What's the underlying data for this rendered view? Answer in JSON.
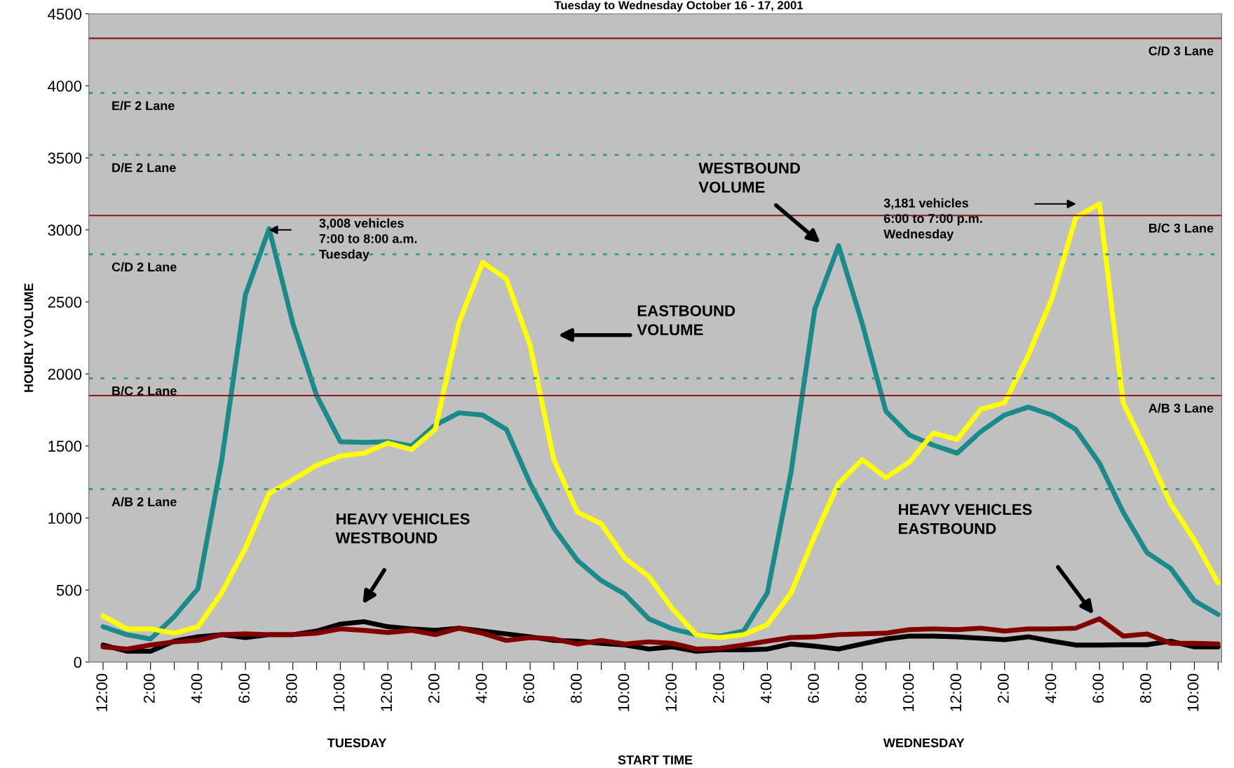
{
  "chart_data": {
    "type": "line",
    "title": "Tuesday to Wednesday October 16 - 17, 2001",
    "xlabel": "START TIME",
    "ylabel": "HOURLY VOLUME",
    "categories": [
      "12:00",
      null,
      "2:00",
      null,
      "4:00",
      null,
      "6:00",
      null,
      "8:00",
      null,
      "10:00",
      null,
      "12:00",
      null,
      "2:00",
      null,
      "4:00",
      null,
      "6:00",
      null,
      "8:00",
      null,
      "10:00",
      null,
      "12:00",
      null,
      "2:00",
      null,
      "4:00",
      null,
      "6:00",
      null,
      "8:00",
      null,
      "10:00",
      null,
      "12:00",
      null,
      "2:00",
      null,
      "4:00",
      null,
      "6:00",
      null,
      "8:00",
      null,
      "10:00",
      null
    ],
    "series": [
      {
        "color": "#1a8a8a",
        "values": [
          245,
          190,
          160,
          315,
          510,
          1400,
          2550,
          3008,
          2350,
          1850,
          1530,
          1525,
          1530,
          1500,
          1645,
          1730,
          1715,
          1615,
          1240,
          930,
          705,
          565,
          470,
          300,
          230,
          190,
          180,
          215,
          480,
          1320,
          2450,
          2890,
          2350,
          1740,
          1575,
          1505,
          1450,
          1600,
          1715,
          1770,
          1715,
          1615,
          1380,
          1040,
          760,
          650,
          425,
          330
        ]
      },
      {
        "color": "#ffff00",
        "values": [
          320,
          230,
          230,
          200,
          245,
          480,
          790,
          1170,
          1265,
          1365,
          1430,
          1450,
          1520,
          1475,
          1615,
          2355,
          2775,
          2660,
          2200,
          1405,
          1040,
          960,
          720,
          595,
          370,
          190,
          170,
          190,
          260,
          480,
          875,
          1240,
          1405,
          1280,
          1390,
          1590,
          1545,
          1755,
          1800,
          2130,
          2525,
          3085,
          3181,
          1800,
          1460,
          1100,
          845,
          550
        ]
      },
      {
        "color": "#000000",
        "values": [
          118,
          75,
          75,
          145,
          175,
          190,
          170,
          190,
          190,
          215,
          263,
          280,
          245,
          230,
          220,
          235,
          215,
          195,
          175,
          150,
          145,
          130,
          118,
          90,
          105,
          75,
          85,
          85,
          90,
          125,
          110,
          90,
          125,
          160,
          180,
          180,
          175,
          165,
          155,
          175,
          145,
          118,
          118,
          120,
          120,
          145,
          105,
          105
        ]
      },
      {
        "color": "#800000",
        "values": [
          105,
          90,
          118,
          140,
          150,
          190,
          195,
          190,
          190,
          200,
          230,
          220,
          205,
          220,
          190,
          235,
          200,
          150,
          170,
          160,
          125,
          150,
          125,
          140,
          130,
          90,
          95,
          118,
          145,
          170,
          175,
          190,
          195,
          200,
          225,
          230,
          225,
          235,
          215,
          230,
          230,
          235,
          300,
          180,
          195,
          130,
          130,
          125
        ]
      }
    ],
    "ylim": [
      0,
      4500
    ],
    "yticks": [
      0,
      500,
      1000,
      1500,
      2000,
      2500,
      3000,
      3500,
      4000,
      4500
    ],
    "grid": false,
    "line_style": "solid",
    "ref_lines": [
      {
        "axis": "y",
        "value": 4330,
        "label": "C/D 3 Lane",
        "color": "#8b1a1a",
        "line_style": "solid"
      },
      {
        "axis": "y",
        "value": 3950,
        "label": "E/F 2 Lane",
        "color": "#2e9a8a",
        "line_style": "dotted"
      },
      {
        "axis": "y",
        "value": 3520,
        "label": "D/E 2 Lane",
        "color": "#2e9a8a",
        "line_style": "dotted"
      },
      {
        "axis": "y",
        "value": 3100,
        "label": "B/C 3 Lane",
        "color": "#8b1a1a",
        "line_style": "solid"
      },
      {
        "axis": "y",
        "value": 2830,
        "label": "C/D 2 Lane",
        "color": "#2e9a8a",
        "line_style": "dotted"
      },
      {
        "axis": "y",
        "value": 1970,
        "label": "B/C 2 Lane",
        "color": "#2e9a8a",
        "line_style": "dotted"
      },
      {
        "axis": "y",
        "value": 1850,
        "label": "A/B 3 Lane",
        "color": "#8b1a1a",
        "line_style": "solid"
      },
      {
        "axis": "y",
        "value": 1200,
        "label": "A/B 2 Lane",
        "color": "#2e9a8a",
        "line_style": "dotted"
      }
    ],
    "annotations": [
      "3,008 vehicles\n7:00 to 8:00 a.m.\nTuesday",
      "3,181 vehicles\n6:00 to 7:00 p.m.\nWednesday",
      "WESTBOUND\nVOLUME",
      "EASTBOUND\nVOLUME",
      "HEAVY VEHICLES\nWESTBOUND",
      "HEAVY VEHICLES\nEASTBOUND",
      "TUESDAY",
      "WEDNESDAY"
    ]
  }
}
